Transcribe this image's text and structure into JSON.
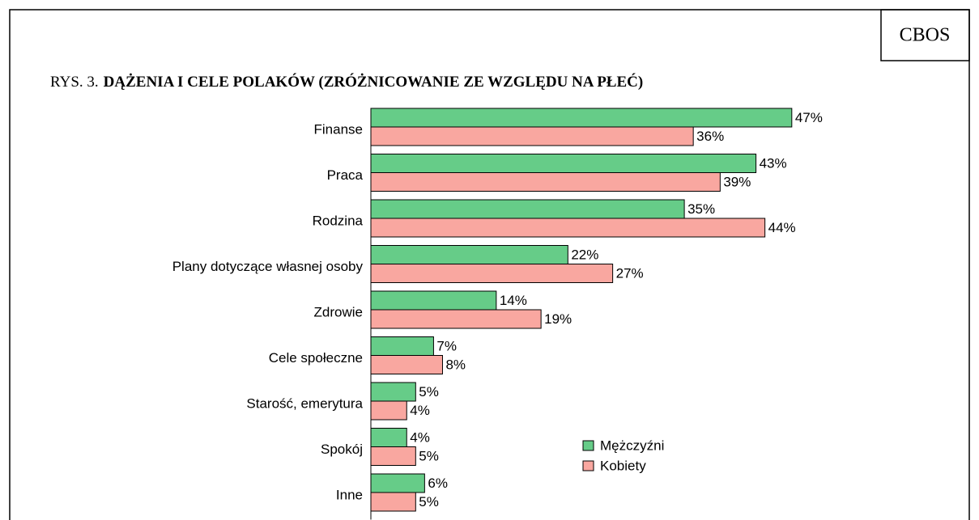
{
  "chart_data": {
    "type": "hbar",
    "source": "CBOS",
    "title_prefix": "RYS. 3.",
    "title": "DĄŻENIA I CELE POLAKÓW (ZRÓŻNICOWANIE ZE WZGLĘDU NA PŁEĆ)",
    "categories": [
      "Finanse",
      "Praca",
      "Rodzina",
      "Plany dotyczące własnej osoby",
      "Zdrowie",
      "Cele społeczne",
      "Starość, emerytura",
      "Spokój",
      "Inne"
    ],
    "series": [
      {
        "name": "Mężczyźni",
        "color": "#66cc88",
        "values": [
          47,
          43,
          35,
          22,
          14,
          7,
          5,
          4,
          6
        ],
        "value_labels": [
          "47%",
          "43%",
          "35%",
          "22%",
          "14%",
          "7%",
          "5%",
          "4%",
          "6%"
        ]
      },
      {
        "name": "Kobiety",
        "color": "#f9a7a0",
        "values": [
          36,
          39,
          44,
          27,
          19,
          8,
          4,
          5,
          5
        ],
        "value_labels": [
          "36%",
          "39%",
          "44%",
          "27%",
          "19%",
          "8%",
          "4%",
          "5%",
          "5%"
        ]
      }
    ],
    "xlim": [
      0,
      50
    ]
  }
}
